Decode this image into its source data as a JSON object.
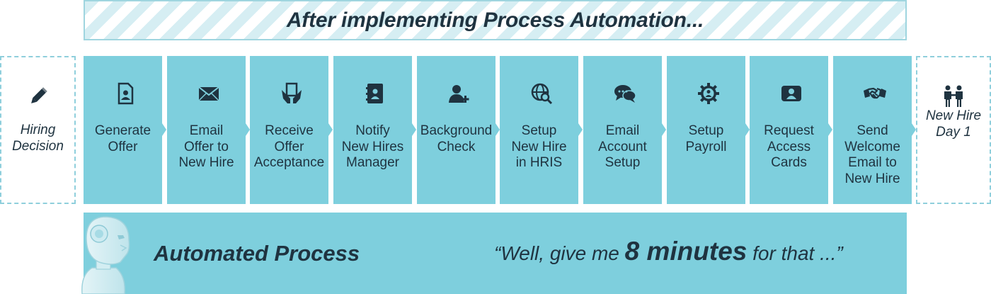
{
  "banner": {
    "title": "After implementing Process Automation..."
  },
  "start": {
    "label": "Hiring\nDecision",
    "icon": "pencil-icon"
  },
  "end": {
    "label": "New Hire\nDay 1",
    "icon": "business-people-icon"
  },
  "steps": [
    {
      "label": "Generate\nOffer",
      "icon": "document-profile-icon"
    },
    {
      "label": "Email\nOffer to\nNew Hire",
      "icon": "envelope-icon"
    },
    {
      "label": "Receive\nOffer\nAcceptance",
      "icon": "hands-document-icon"
    },
    {
      "label": "Notify\nNew Hires\nManager",
      "icon": "address-book-icon"
    },
    {
      "label": "Background\nCheck",
      "icon": "add-user-icon"
    },
    {
      "label": "Setup\nNew Hire\nin HRIS",
      "icon": "globe-search-icon"
    },
    {
      "label": "Email\nAccount\nSetup",
      "icon": "chat-bubbles-icon"
    },
    {
      "label": "Setup\nPayroll",
      "icon": "gear-person-icon"
    },
    {
      "label": "Request\nAccess\nCards",
      "icon": "id-card-icon"
    },
    {
      "label": "Send\nWelcome\nEmail to\nNew Hire",
      "icon": "handshake-icon"
    }
  ],
  "automated": {
    "title": "Automated Process",
    "quote_pre": "“Well, give me ",
    "quote_strong": "8 minutes",
    "quote_post": " for that ...”",
    "icon": "robot-icon"
  },
  "colors": {
    "step_fill": "#7ecfdd",
    "text": "#1f3340",
    "border": "#8fcfdc"
  }
}
